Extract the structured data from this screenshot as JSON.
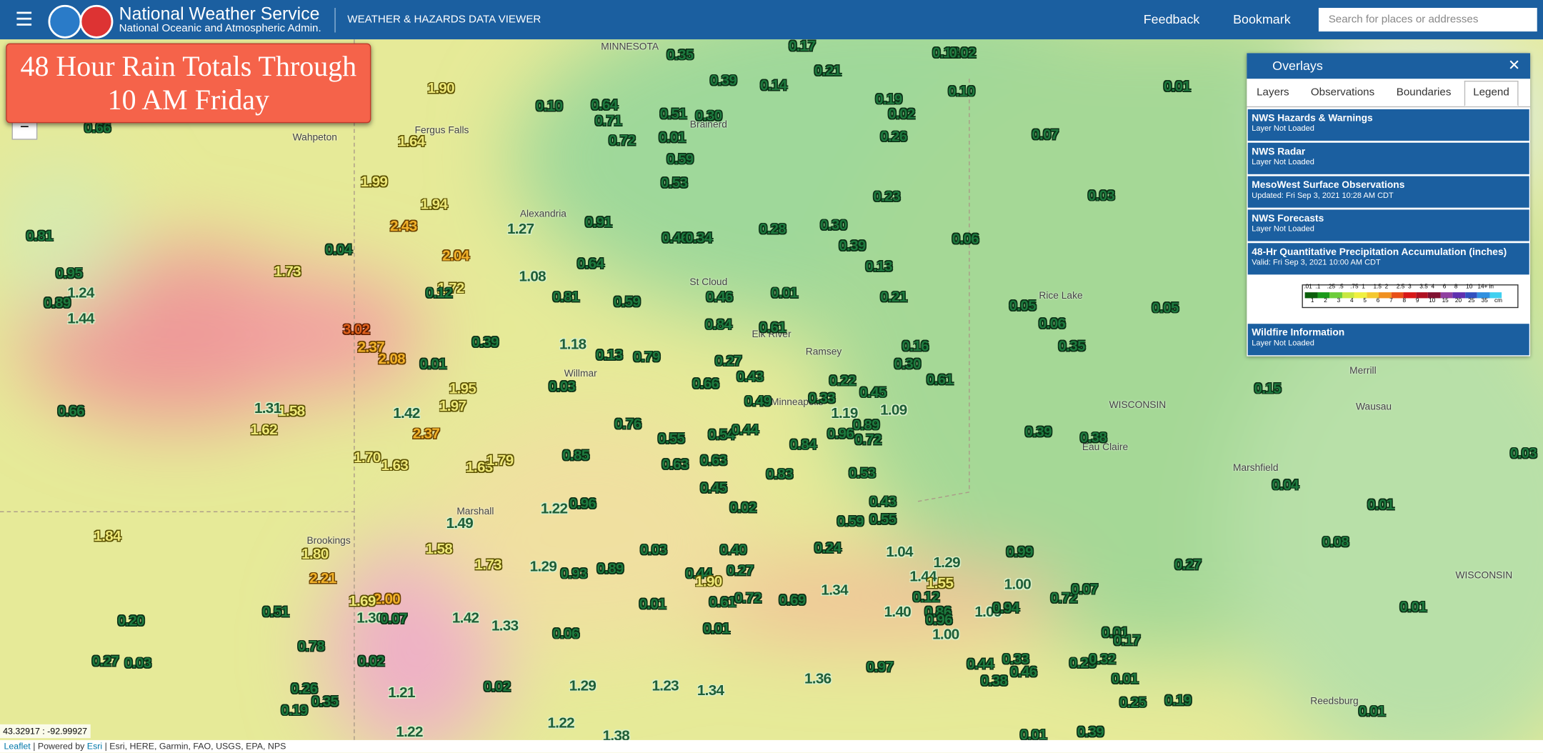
{
  "header": {
    "title": "National Weather Service",
    "subtitle": "National Oceanic and Atmospheric Admin.",
    "app_name": "WEATHER & HAZARDS DATA VIEWER",
    "feedback": "Feedback",
    "bookmark": "Bookmark",
    "search_placeholder": "Search for places or addresses"
  },
  "map_title": [
    "48 Hour Rain Totals Through",
    "10 AM Friday"
  ],
  "overlays": {
    "title": "Overlays",
    "tabs": [
      "Layers",
      "Observations",
      "Boundaries",
      "Legend"
    ],
    "layers": [
      {
        "name": "NWS Hazards & Warnings",
        "status": "Layer Not Loaded"
      },
      {
        "name": "NWS Radar",
        "status": "Layer Not Loaded"
      },
      {
        "name": "MesoWest Surface Observations",
        "status": "Updated: Fri Sep 3, 2021 10:28 AM CDT"
      },
      {
        "name": "NWS Forecasts",
        "status": "Layer Not Loaded"
      },
      {
        "name": "48-Hr Quantitative Precipitation Accumulation (inches)",
        "status": "Valid: Fri Sep 3, 2021 10:00 AM CDT"
      },
      {
        "name": "Wildfire Information",
        "status": "Layer Not Loaded"
      }
    ],
    "legend_in": [
      ".01",
      ".1",
      ".25",
      ".5",
      ".75",
      "1",
      "1.5",
      "2",
      "2.5",
      "3",
      "3.5",
      "4",
      "6",
      "8",
      "10",
      "14+",
      "in"
    ],
    "legend_cm": [
      "1",
      "2",
      "3",
      "4",
      "5",
      "6",
      "7",
      "8",
      "9",
      "10",
      "15",
      "20",
      "25",
      "35",
      "cm"
    ]
  },
  "map": {
    "rain_totals": [
      "1.90",
      "1.64",
      "1.99",
      "1.94",
      "2.43",
      "2.04",
      "1.73",
      "0.81",
      "0.95",
      "1.24",
      "0.89",
      "1.44",
      "3.02",
      "2.37",
      "2.08",
      "0.01",
      "1.95",
      "1.97",
      "0.39",
      "1.72",
      "0.66",
      "1.58",
      "1.62",
      "1.42",
      "2.37",
      "1.70",
      "1.63",
      "1.63",
      "1.79",
      "1.49",
      "1.22",
      "1.84",
      "1.80",
      "2.21",
      "2.00",
      "1.58",
      "1.73",
      "1.29",
      "0.51",
      "1.30",
      "1.42",
      "1.33",
      "0.20",
      "0.78",
      "0.27",
      "0.03",
      "0.02",
      "0.26",
      "0.19",
      "1.21",
      "0.02",
      "1.29",
      "1.23",
      "1.34",
      "1.22",
      "1.22",
      "1.38",
      "0.10",
      "0.64",
      "0.71",
      "0.72",
      "0.51",
      "0.30",
      "0.01",
      "0.59",
      "0.53",
      "0.39",
      "0.14",
      "0.21",
      "1.27",
      "0.91",
      "0.46",
      "0.34",
      "0.64",
      "1.08",
      "0.81",
      "0.59",
      "0.46",
      "0.84",
      "0.61",
      "1.18",
      "0.13",
      "0.79",
      "0.03",
      "0.27",
      "0.43",
      "0.66",
      "0.49",
      "0.76",
      "0.55",
      "0.54",
      "0.44",
      "0.85",
      "0.63",
      "0.63",
      "0.45",
      "0.96",
      "0.02",
      "0.83",
      "0.84",
      "0.28",
      "0.30",
      "0.39",
      "0.13",
      "0.01",
      "0.22",
      "0.33",
      "0.45",
      "1.19",
      "0.89",
      "0.96",
      "0.72",
      "1.09",
      "0.53",
      "0.43",
      "0.59",
      "0.55",
      "0.24",
      "1.04",
      "0.40",
      "0.27",
      "0.44",
      "1.90",
      "0.61",
      "0.72",
      "0.69",
      "0.03",
      "0.93",
      "0.89",
      "0.01",
      "0.06",
      "0.01",
      "1.34",
      "1.40",
      "1.44",
      "1.29",
      "1.55",
      "0.12",
      "0.86",
      "0.96",
      "1.00",
      "1.09",
      "0.94",
      "1.00",
      "0.99",
      "0.72",
      "0.07",
      "1.36",
      "0.97",
      "0.44",
      "0.33",
      "0.46",
      "0.38",
      "0.25",
      "0.32",
      "0.01",
      "0.17",
      "0.01",
      "0.25",
      "0.19",
      "0.01",
      "0.39",
      "0.19",
      "0.02",
      "0.26",
      "0.13",
      "0.02",
      "0.10",
      "0.23",
      "0.21",
      "0.16",
      "0.30",
      "0.61",
      "0.06",
      "0.07",
      "0.01",
      "0.03",
      "0.05",
      "0.06",
      "0.05",
      "0.35",
      "0.15",
      "0.39",
      "0.38",
      "0.04",
      "0.01",
      "0.08",
      "0.27",
      "0.01",
      "0.01",
      "0.03",
      "0.35",
      "0.17",
      "0.04",
      "0.12",
      "1.31",
      "1.69",
      "0.07",
      "0.35",
      "0.66"
    ],
    "places": [
      "Wahpeton",
      "Fergus Falls",
      "Alexandria",
      "St Cloud",
      "Willmar",
      "Marshall",
      "Brookings",
      "Minneapolis",
      "Ramsey",
      "Elk River",
      "Eau Claire",
      "WISCONSIN",
      "Wausau",
      "Marshfield",
      "Merrill",
      "Rice Lake",
      "Reedsburg",
      "Brainerd",
      "MINNESOTA",
      "WISCONSIN"
    ]
  },
  "footer": {
    "coordinates": "43.32917 : -92.99927",
    "leaflet": "Leaflet",
    "powered_by": "Powered by",
    "esri": "Esri",
    "attribution": "Esri, HERE, Garmin, FAO, USGS, EPA, NPS"
  }
}
